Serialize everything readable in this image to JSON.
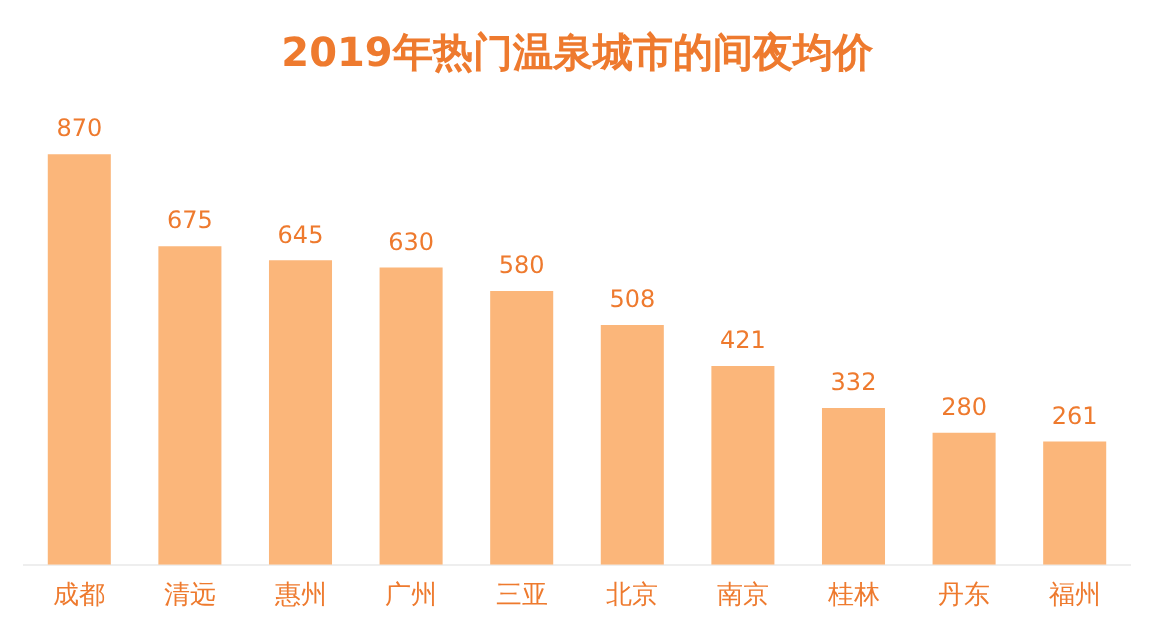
{
  "chart_data": {
    "type": "bar",
    "title": "2019年热门温泉城市的间夜均价",
    "categories": [
      "成都",
      "清远",
      "惠州",
      "广州",
      "三亚",
      "北京",
      "南京",
      "桂林",
      "丹东",
      "福州"
    ],
    "values": [
      870,
      675,
      645,
      630,
      580,
      508,
      421,
      332,
      280,
      261
    ],
    "color": "#fbb67a",
    "data_labels": true,
    "grid": false,
    "legend": false
  }
}
